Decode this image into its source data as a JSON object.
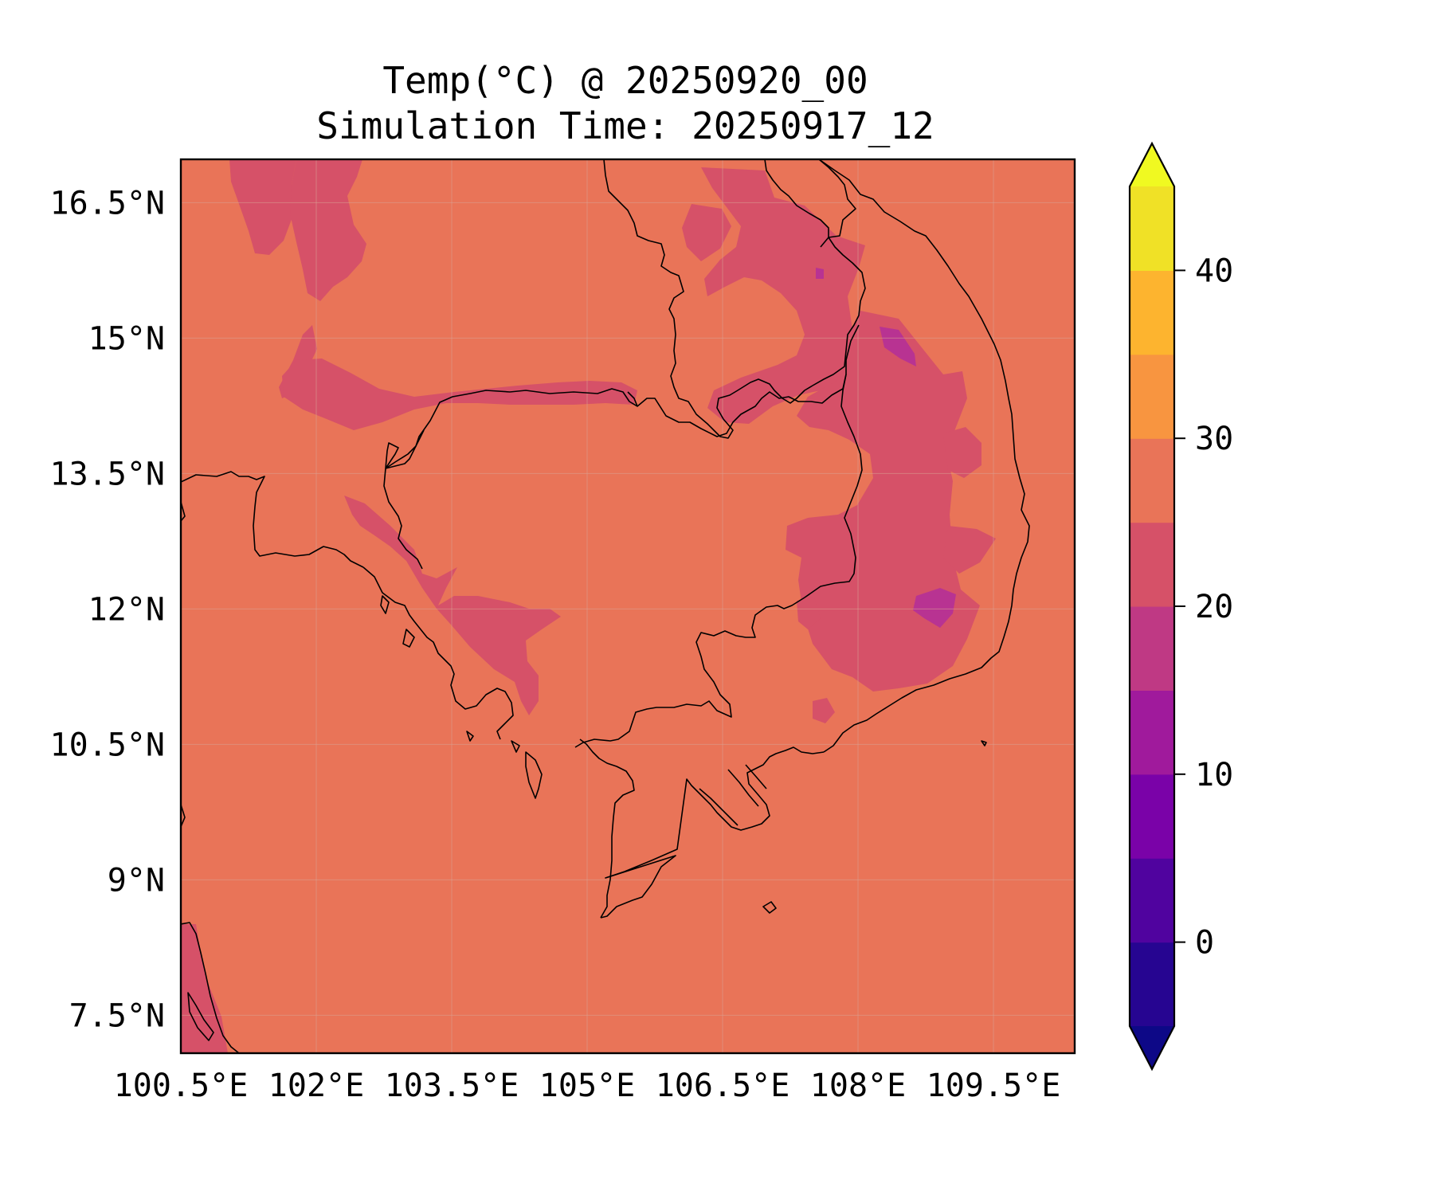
{
  "title": {
    "line1": "Temp(°C) @ 20250920_00",
    "line2": "Simulation Time: 20250917_12"
  },
  "map": {
    "lon_ticks": [
      "100.5°E",
      "102°E",
      "103.5°E",
      "105°E",
      "106.5°E",
      "108°E",
      "109.5°E"
    ],
    "lat_ticks": [
      "16.5°N",
      "15°N",
      "13.5°N",
      "12°N",
      "10.5°N",
      "9°N",
      "7.5°N"
    ],
    "lon_tick_values": [
      100.5,
      102,
      103.5,
      105,
      106.5,
      108,
      109.5
    ],
    "lat_tick_values": [
      16.5,
      15,
      13.5,
      12,
      10.5,
      9,
      7.5
    ],
    "extent": {
      "lon_min": 100.5,
      "lon_max": 110.4,
      "lat_min": 7.08,
      "lat_max": 16.98
    },
    "background_fill_color": "#e97458",
    "cool_fill_color": "#d65168",
    "coolest_fill_color": "#b83392",
    "coastline_color": "#000000",
    "grid": true
  },
  "colorbar": {
    "tick_labels": [
      "40",
      "30",
      "20",
      "10",
      "0"
    ],
    "tick_values": [
      40,
      30,
      20,
      10,
      0
    ],
    "range": [
      -5,
      45
    ],
    "extend": "both",
    "levels": [
      {
        "min": -5,
        "max": 0,
        "color": "#260591"
      },
      {
        "min": 0,
        "max": 5,
        "color": "#50039f"
      },
      {
        "min": 5,
        "max": 10,
        "color": "#7a02a8"
      },
      {
        "min": 10,
        "max": 15,
        "color": "#a01a9c"
      },
      {
        "min": 15,
        "max": 20,
        "color": "#bf3984"
      },
      {
        "min": 20,
        "max": 25,
        "color": "#d65168"
      },
      {
        "min": 25,
        "max": 30,
        "color": "#e97458"
      },
      {
        "min": 30,
        "max": 35,
        "color": "#f89540"
      },
      {
        "min": 35,
        "max": 40,
        "color": "#fdb42f"
      },
      {
        "min": 40,
        "max": 45,
        "color": "#f0e126"
      }
    ],
    "under_color": "#0d0887",
    "over_color": "#f0f921"
  }
}
